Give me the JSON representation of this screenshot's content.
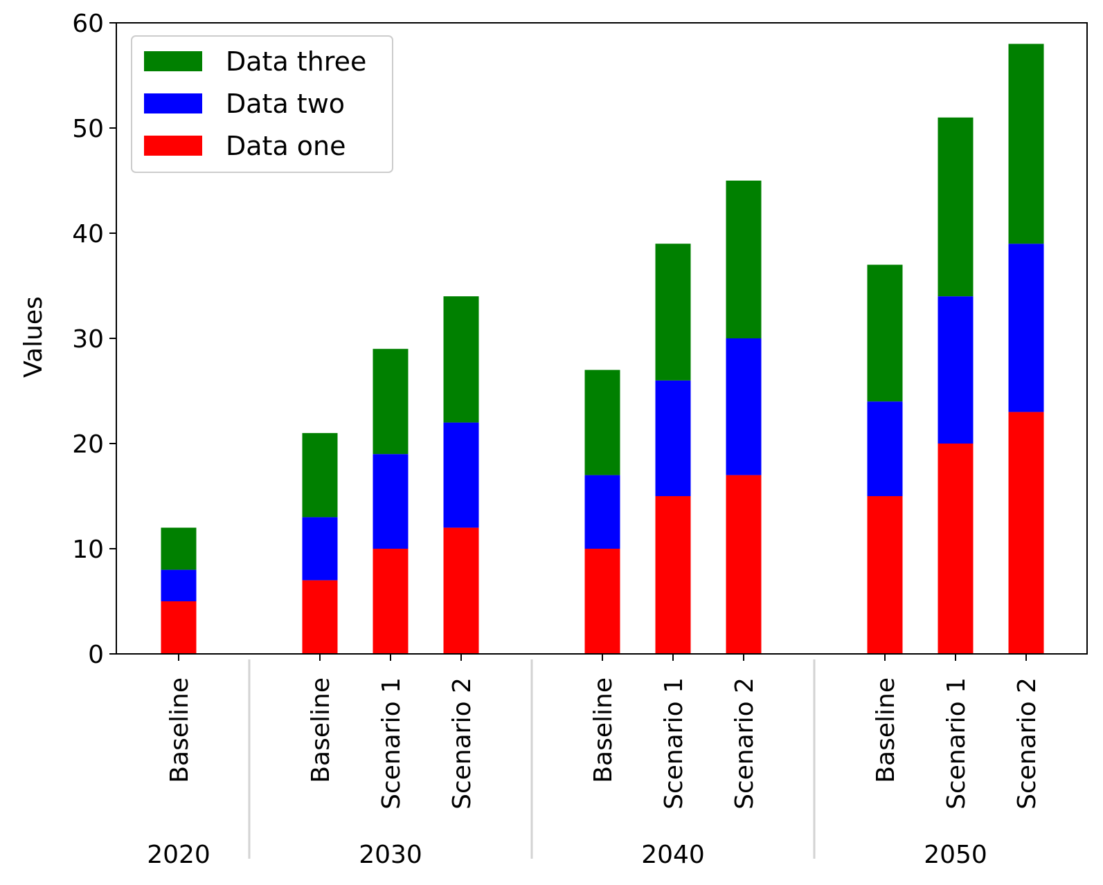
{
  "chart_data": {
    "type": "bar",
    "stacked": true,
    "ylabel": "Values",
    "ylim": [
      0,
      60
    ],
    "yticks": [
      0,
      10,
      20,
      30,
      40,
      50,
      60
    ],
    "grid": false,
    "legend_position": "top-left",
    "groups": [
      {
        "label": "2020",
        "categories": [
          "Baseline"
        ]
      },
      {
        "label": "2030",
        "categories": [
          "Baseline",
          "Scenario 1",
          "Scenario 2"
        ]
      },
      {
        "label": "2040",
        "categories": [
          "Baseline",
          "Scenario 1",
          "Scenario 2"
        ]
      },
      {
        "label": "2050",
        "categories": [
          "Baseline",
          "Scenario 1",
          "Scenario 2"
        ]
      }
    ],
    "series": [
      {
        "name": "Data one",
        "color": "#ff0000",
        "values": [
          5,
          7,
          10,
          12,
          10,
          15,
          17,
          15,
          20,
          23
        ]
      },
      {
        "name": "Data two",
        "color": "#0000ff",
        "values": [
          3,
          6,
          9,
          10,
          7,
          11,
          13,
          9,
          14,
          16
        ]
      },
      {
        "name": "Data three",
        "color": "#008000",
        "values": [
          4,
          8,
          10,
          12,
          10,
          13,
          15,
          13,
          17,
          19
        ]
      }
    ]
  }
}
